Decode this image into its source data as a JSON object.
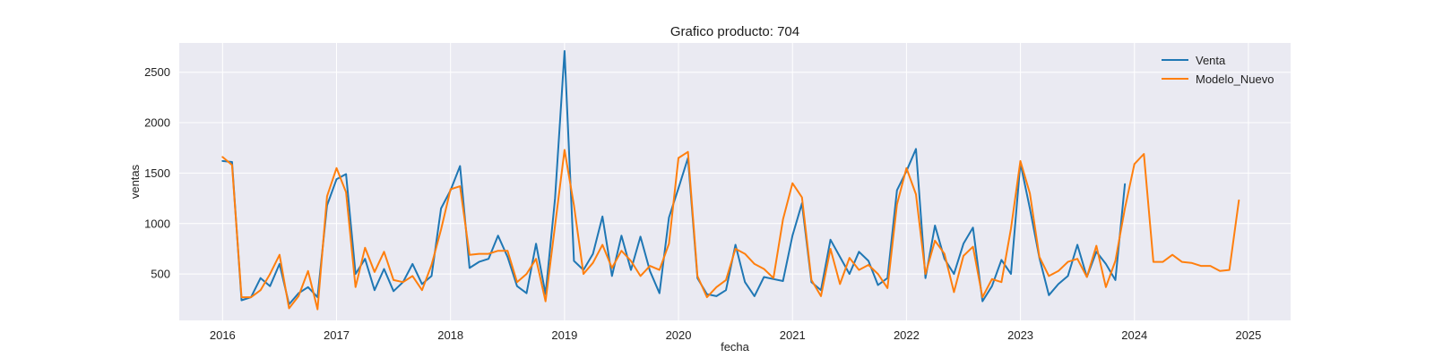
{
  "chart_data": {
    "type": "line",
    "title": "Grafico producto: 704",
    "xlabel": "fecha",
    "ylabel": "ventas",
    "xlim": [
      2015.62,
      2025.37
    ],
    "ylim": [
      40,
      2790
    ],
    "x_ticks": [
      "2016",
      "2017",
      "2018",
      "2019",
      "2020",
      "2021",
      "2022",
      "2023",
      "2024",
      "2025"
    ],
    "y_ticks": [
      500,
      1000,
      1500,
      2000,
      2500
    ],
    "grid": true,
    "legend_position": "top-right",
    "series": [
      {
        "name": "Venta",
        "color": "#1f77b4",
        "start": 2016.0,
        "step": 0.08333,
        "values": [
          1620,
          1610,
          240,
          270,
          460,
          380,
          600,
          200,
          310,
          370,
          270,
          1180,
          1440,
          1490,
          500,
          650,
          340,
          550,
          330,
          420,
          600,
          400,
          480,
          1150,
          1330,
          1570,
          560,
          620,
          650,
          880,
          670,
          380,
          310,
          800,
          300,
          1250,
          2710,
          630,
          540,
          700,
          1070,
          480,
          880,
          540,
          870,
          530,
          310,
          1060,
          1350,
          1650,
          460,
          300,
          280,
          340,
          790,
          420,
          280,
          470,
          450,
          430,
          880,
          1200,
          420,
          340,
          840,
          670,
          500,
          720,
          630,
          390,
          460,
          1330,
          1520,
          1740,
          460,
          980,
          650,
          500,
          800,
          960,
          230,
          380,
          640,
          500,
          1600,
          1150,
          660,
          290,
          400,
          480,
          790,
          470,
          720,
          600,
          440,
          1390
        ]
      },
      {
        "name": "Modelo_Nuevo",
        "color": "#ff7f0e",
        "start": 2016.0,
        "step": 0.08333,
        "values": [
          1660,
          1580,
          270,
          270,
          340,
          500,
          690,
          160,
          280,
          530,
          150,
          1270,
          1550,
          1310,
          370,
          760,
          520,
          720,
          440,
          420,
          480,
          340,
          590,
          940,
          1340,
          1370,
          690,
          700,
          700,
          730,
          730,
          420,
          500,
          650,
          230,
          980,
          1730,
          1180,
          500,
          610,
          790,
          560,
          730,
          630,
          480,
          580,
          540,
          800,
          1650,
          1710,
          480,
          270,
          370,
          440,
          750,
          700,
          600,
          550,
          460,
          1040,
          1400,
          1260,
          440,
          280,
          750,
          400,
          660,
          540,
          590,
          500,
          360,
          1190,
          1550,
          1290,
          500,
          830,
          700,
          320,
          680,
          770,
          270,
          450,
          420,
          950,
          1620,
          1300,
          670,
          480,
          530,
          620,
          650,
          470,
          780,
          370,
          630,
          1150,
          1590,
          1690,
          620,
          620,
          690,
          620,
          610,
          580,
          580,
          530,
          540,
          1230
        ]
      }
    ]
  }
}
